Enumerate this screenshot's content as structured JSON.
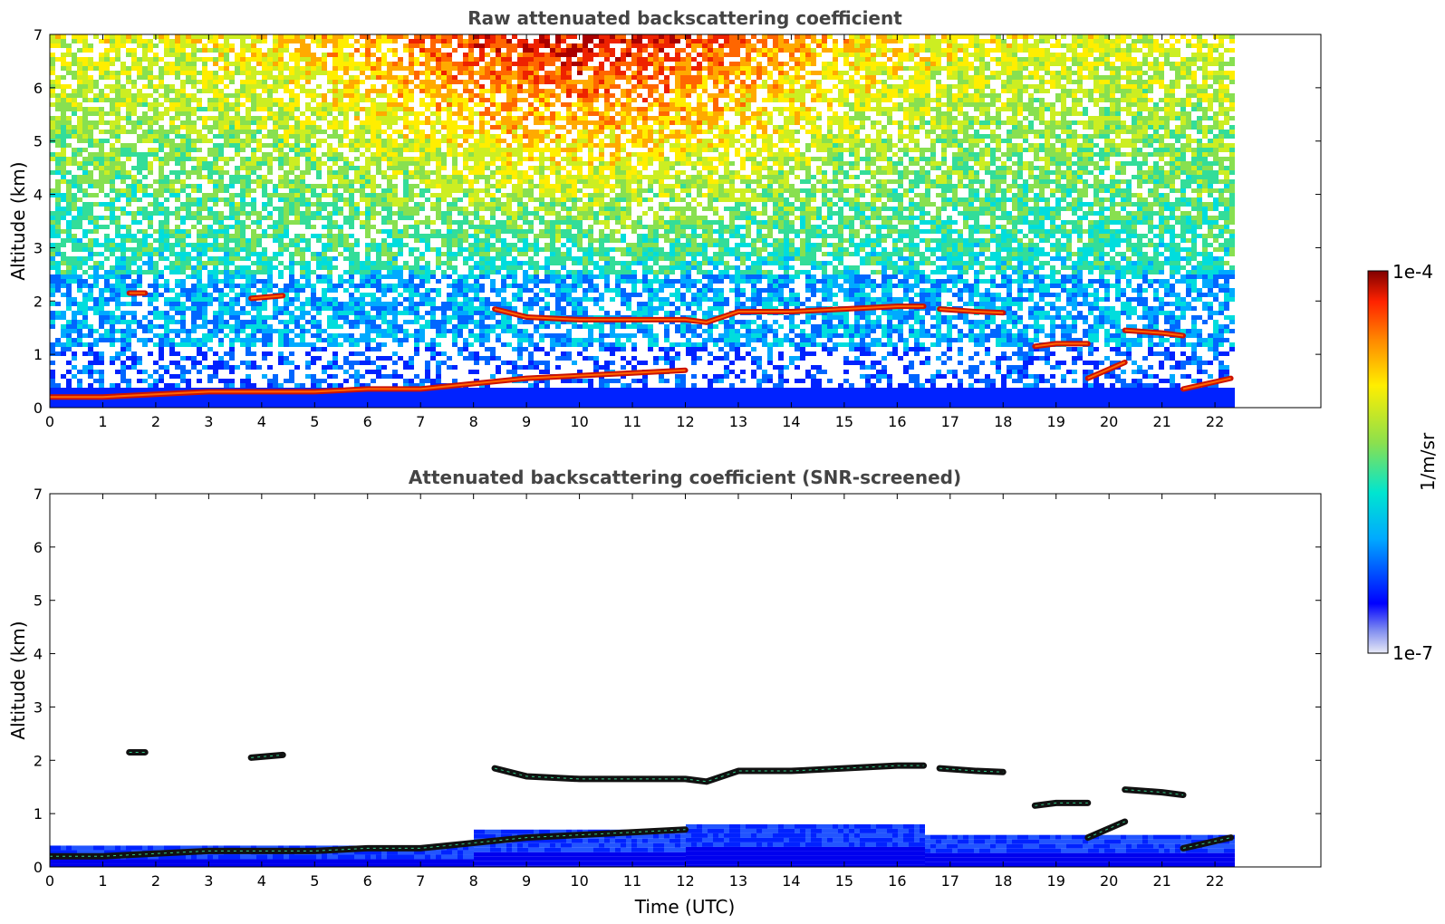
{
  "chart_data": [
    {
      "type": "heatmap",
      "title": "Raw attenuated backscattering coefficient",
      "xlabel": "",
      "ylabel": "Altitude (km)",
      "xlim": [
        0,
        24
      ],
      "ylim": [
        0,
        7
      ],
      "x_ticks": [
        0,
        1,
        2,
        3,
        4,
        5,
        6,
        7,
        8,
        9,
        10,
        11,
        12,
        13,
        14,
        15,
        16,
        17,
        18,
        19,
        20,
        21,
        22
      ],
      "y_ticks": [
        0,
        1,
        2,
        3,
        4,
        5,
        6,
        7
      ],
      "data_end_time": 22.3,
      "screened": false,
      "layers": [
        {
          "t": [
            0,
            1,
            2,
            3,
            4,
            5,
            6,
            7,
            8,
            9,
            10,
            11,
            12
          ],
          "alt": [
            0.2,
            0.2,
            0.25,
            0.3,
            0.3,
            0.3,
            0.35,
            0.35,
            0.45,
            0.55,
            0.6,
            0.65,
            0.7
          ]
        },
        {
          "t": [
            8.4,
            9,
            10,
            11,
            12,
            12.4,
            13,
            14,
            15,
            16,
            16.5
          ],
          "alt": [
            1.85,
            1.7,
            1.65,
            1.65,
            1.65,
            1.6,
            1.8,
            1.8,
            1.85,
            1.9,
            1.9
          ]
        },
        {
          "t": [
            16.8,
            17.5,
            18.0
          ],
          "alt": [
            1.85,
            1.8,
            1.78
          ]
        },
        {
          "t": [
            1.5,
            1.8
          ],
          "alt": [
            2.15,
            2.15
          ]
        },
        {
          "t": [
            3.8,
            4.4
          ],
          "alt": [
            2.05,
            2.1
          ]
        },
        {
          "t": [
            18.6,
            19.0,
            19.6
          ],
          "alt": [
            1.15,
            1.2,
            1.2
          ]
        },
        {
          "t": [
            20.3,
            21.0,
            21.4
          ],
          "alt": [
            1.45,
            1.4,
            1.35
          ]
        },
        {
          "t": [
            19.6,
            20.3
          ],
          "alt": [
            0.55,
            0.85
          ]
        },
        {
          "t": [
            21.4,
            22.3
          ],
          "alt": [
            0.35,
            0.55
          ]
        }
      ]
    },
    {
      "type": "heatmap",
      "title": "Attenuated backscattering coefficient (SNR-screened)",
      "xlabel": "Time (UTC)",
      "ylabel": "Altitude (km)",
      "xlim": [
        0,
        24
      ],
      "ylim": [
        0,
        7
      ],
      "x_ticks": [
        0,
        1,
        2,
        3,
        4,
        5,
        6,
        7,
        8,
        9,
        10,
        11,
        12,
        13,
        14,
        15,
        16,
        17,
        18,
        19,
        20,
        21,
        22
      ],
      "y_ticks": [
        0,
        1,
        2,
        3,
        4,
        5,
        6,
        7
      ],
      "data_end_time": 22.3,
      "screened": true,
      "layers": [
        {
          "t": [
            0,
            1,
            2,
            3,
            4,
            5,
            6,
            7,
            8,
            9,
            10,
            11,
            12
          ],
          "alt": [
            0.2,
            0.2,
            0.25,
            0.3,
            0.3,
            0.3,
            0.35,
            0.35,
            0.45,
            0.55,
            0.6,
            0.65,
            0.7
          ]
        },
        {
          "t": [
            8.4,
            9,
            10,
            11,
            12,
            12.4,
            13,
            14,
            15,
            16,
            16.5
          ],
          "alt": [
            1.85,
            1.7,
            1.65,
            1.65,
            1.65,
            1.6,
            1.8,
            1.8,
            1.85,
            1.9,
            1.9
          ]
        },
        {
          "t": [
            16.8,
            17.5,
            18.0
          ],
          "alt": [
            1.85,
            1.8,
            1.78
          ]
        },
        {
          "t": [
            1.5,
            1.8
          ],
          "alt": [
            2.15,
            2.15
          ]
        },
        {
          "t": [
            3.8,
            4.4
          ],
          "alt": [
            2.05,
            2.1
          ]
        },
        {
          "t": [
            18.6,
            19.0,
            19.6
          ],
          "alt": [
            1.15,
            1.2,
            1.2
          ]
        },
        {
          "t": [
            20.3,
            21.0,
            21.4
          ],
          "alt": [
            1.45,
            1.4,
            1.35
          ]
        },
        {
          "t": [
            19.6,
            20.3
          ],
          "alt": [
            0.55,
            0.85
          ]
        },
        {
          "t": [
            21.4,
            22.3
          ],
          "alt": [
            0.35,
            0.55
          ]
        }
      ]
    }
  ],
  "colorbar": {
    "label": "1/m/sr",
    "max_label": "1e-4",
    "min_label": "1e-7",
    "colormap": [
      "#e8eaf6",
      "#0000ff",
      "#00aaff",
      "#00e5d0",
      "#8be04e",
      "#ffee00",
      "#ff8800",
      "#ff2200",
      "#800000"
    ]
  }
}
